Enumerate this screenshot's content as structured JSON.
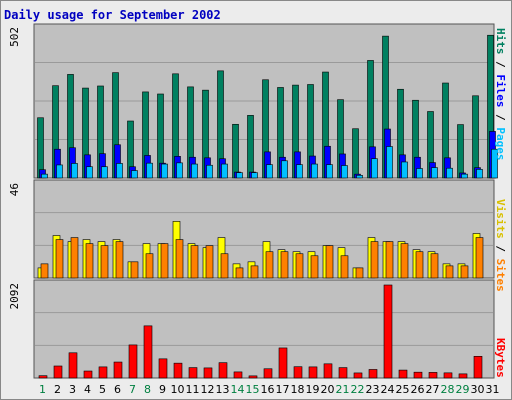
{
  "colors": {
    "frame_bg": "#ececec",
    "plot_bg": "#c0c0c0",
    "grid": "#9a9a9a",
    "title": "#0000c0",
    "hits": "#008060",
    "files": "#0000ff",
    "pages": "#00c0ff",
    "visits": "#ffff00",
    "sites": "#ff8000",
    "kbytes": "#ff0000",
    "weekday_label": "#000000",
    "weekend_label": "#008040"
  },
  "chart_data": [
    {
      "type": "bar",
      "title": "Daily usage for September 2002",
      "categories": [
        "1",
        "2",
        "3",
        "4",
        "5",
        "6",
        "7",
        "8",
        "9",
        "10",
        "11",
        "12",
        "13",
        "14",
        "15",
        "16",
        "17",
        "18",
        "19",
        "20",
        "21",
        "22",
        "23",
        "24",
        "25",
        "26",
        "27",
        "28",
        "29",
        "30",
        "31"
      ],
      "weekend_days": [
        "1",
        "7",
        "8",
        "14",
        "15",
        "21",
        "22",
        "28",
        "29"
      ],
      "ymax_label": "502",
      "ylim": [
        0,
        502
      ],
      "series": [
        {
          "name": "Hits",
          "values": [
            203,
            311,
            349,
            303,
            310,
            355,
            192,
            290,
            283,
            351,
            307,
            296,
            361,
            181,
            211,
            331,
            305,
            313,
            315,
            357,
            264,
            166,
            396,
            478,
            299,
            262,
            224,
            320,
            180,
            277,
            481
          ]
        },
        {
          "name": "Files",
          "values": [
            28,
            97,
            102,
            78,
            82,
            112,
            38,
            76,
            50,
            73,
            70,
            68,
            65,
            20,
            20,
            88,
            70,
            88,
            74,
            107,
            81,
            13,
            105,
            165,
            78,
            70,
            52,
            68,
            17,
            35,
            157
          ]
        },
        {
          "name": "Pages",
          "values": [
            13,
            44,
            49,
            38,
            38,
            49,
            25,
            50,
            47,
            51,
            47,
            43,
            47,
            18,
            18,
            45,
            58,
            45,
            47,
            45,
            42,
            9,
            65,
            106,
            54,
            32,
            35,
            33,
            13,
            29,
            97
          ]
        }
      ]
    },
    {
      "type": "bar",
      "ymax_label": "46",
      "ylim": [
        0,
        46
      ],
      "series": [
        {
          "name": "Visits",
          "values": [
            5,
            21,
            18,
            19,
            18,
            19,
            8,
            17,
            17,
            28,
            17,
            15,
            20,
            7,
            8,
            18,
            14,
            13,
            13,
            16,
            15,
            5,
            20,
            18,
            18,
            14,
            13,
            7,
            7,
            22,
            0
          ]
        },
        {
          "name": "Sites",
          "values": [
            7,
            19,
            20,
            17,
            16,
            18,
            8,
            12,
            17,
            19,
            16,
            16,
            12,
            5,
            6,
            13,
            13,
            12,
            11,
            16,
            11,
            5,
            18,
            18,
            17,
            13,
            12,
            6,
            6,
            20,
            0
          ]
        }
      ]
    },
    {
      "type": "bar",
      "ymax_label": "2092",
      "ylim": [
        0,
        2092
      ],
      "series": [
        {
          "name": "KBytes",
          "values": [
            52,
            270,
            567,
            157,
            250,
            359,
            744,
            1173,
            431,
            334,
            234,
            227,
            345,
            137,
            48,
            208,
            676,
            254,
            250,
            319,
            234,
            114,
            192,
            2092,
            178,
            131,
            126,
            116,
            93,
            488,
            0
          ]
        }
      ]
    }
  ]
}
